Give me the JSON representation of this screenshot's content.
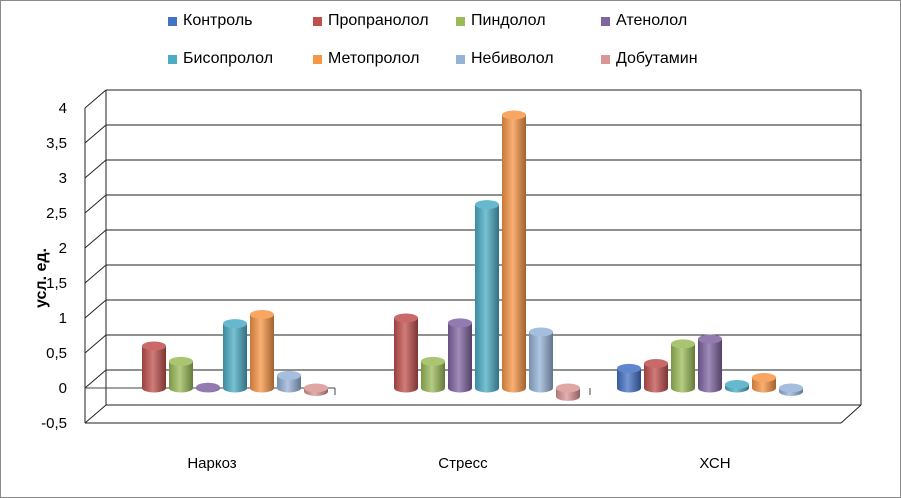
{
  "chart_data": {
    "type": "bar",
    "title": "",
    "xlabel": "",
    "ylabel": "усл. ед.",
    "ylim": [
      -0.5,
      4
    ],
    "yticks": [
      "-0,5",
      "0",
      "0,5",
      "1",
      "1,5",
      "2",
      "2,5",
      "3",
      "3,5",
      "4"
    ],
    "grid": true,
    "legend_position": "top",
    "categories": [
      "Наркоз",
      "Стресс",
      "ХСН"
    ],
    "series": [
      {
        "name": "Контроль",
        "color": "#4472C4",
        "values": [
          0,
          0,
          0.28
        ]
      },
      {
        "name": "Пропранолол",
        "color": "#C0504D",
        "values": [
          0.6,
          1.0,
          0.35
        ]
      },
      {
        "name": "Пиндолол",
        "color": "#9BBB59",
        "values": [
          0.38,
          0.38,
          0.63
        ]
      },
      {
        "name": "Атенолол",
        "color": "#8064A2",
        "values": [
          0.01,
          0.93,
          0.7
        ]
      },
      {
        "name": "Бисопролол",
        "color": "#4BACC6",
        "values": [
          0.92,
          2.62,
          0.05
        ]
      },
      {
        "name": "Метопролол",
        "color": "#F79646",
        "values": [
          1.05,
          3.9,
          0.15
        ]
      },
      {
        "name": "Небиволол",
        "color": "#95B3D7",
        "values": [
          0.18,
          0.8,
          -0.05
        ]
      },
      {
        "name": "Добутамин",
        "color": "#D99694",
        "values": [
          -0.05,
          -0.12,
          0
        ]
      }
    ]
  }
}
